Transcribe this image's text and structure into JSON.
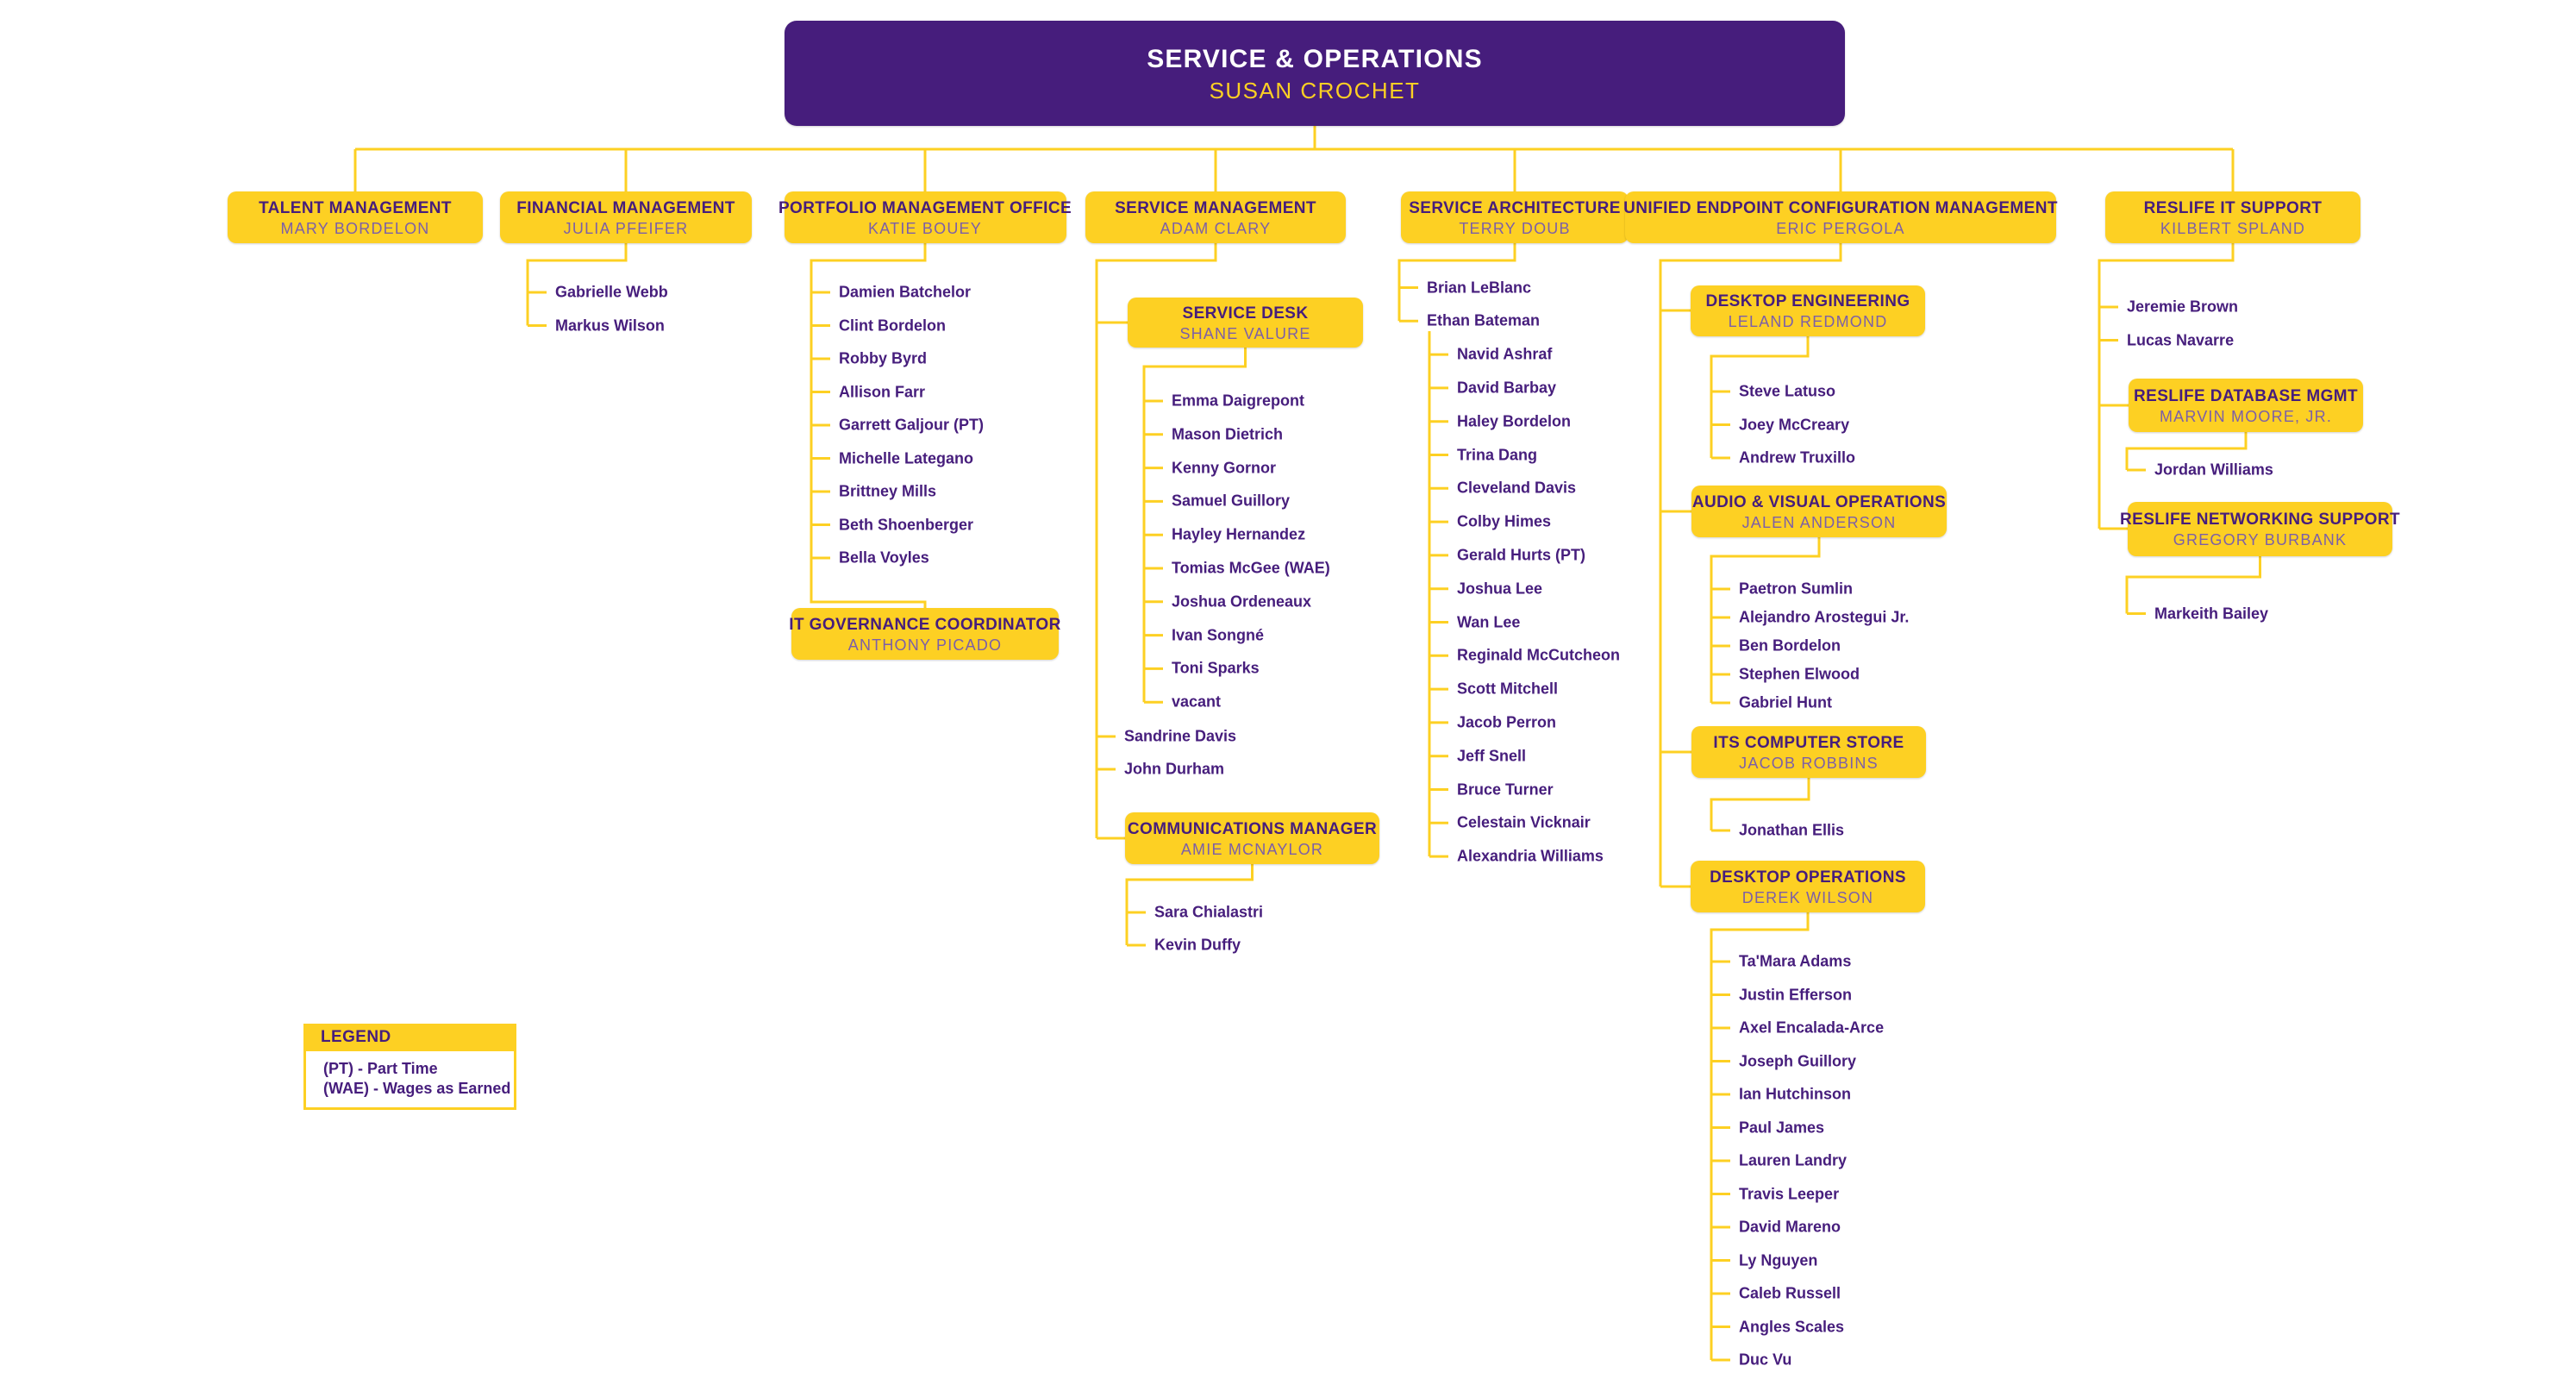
{
  "colors": {
    "purple": "#461D7C",
    "gold": "#FDD023",
    "manager_name": "#7C5FA8",
    "background": "#FFFFFF"
  },
  "root": {
    "title": "SERVICE & OPERATIONS",
    "name": "SUSAN CROCHET"
  },
  "departments": [
    {
      "key": "talent",
      "title": "TALENT MANAGEMENT",
      "name": "MARY BORDELON",
      "staff": [],
      "subunits": []
    },
    {
      "key": "financial",
      "title": "FINANCIAL MANAGEMENT",
      "name": "JULIA PFEIFER",
      "staff": [
        "Gabrielle Webb",
        "Markus Wilson"
      ],
      "subunits": []
    },
    {
      "key": "portfolio",
      "title": "PORTFOLIO MANAGEMENT OFFICE",
      "name": "KATIE BOUEY",
      "staff": [
        "Damien Batchelor",
        "Clint Bordelon",
        "Robby Byrd",
        "Allison Farr",
        "Garrett Galjour (PT)",
        "Michelle Lategano",
        "Brittney Mills",
        "Beth Shoenberger",
        "Bella Voyles"
      ],
      "subunits": [
        {
          "key": "itgov",
          "title": "IT GOVERNANCE COORDINATOR",
          "name": "ANTHONY PICADO",
          "staff": []
        }
      ]
    },
    {
      "key": "servicemgmt",
      "title": "SERVICE MANAGEMENT",
      "name": "ADAM CLARY",
      "staff": [
        "Sandrine Davis",
        "John Durham"
      ],
      "subunits": [
        {
          "key": "servicedesk",
          "title": "SERVICE DESK",
          "name": "SHANE VALURE",
          "staff": [
            "Emma Daigrepont",
            "Mason Dietrich",
            "Kenny Gornor",
            "Samuel Guillory",
            "Hayley Hernandez",
            "Tomias McGee (WAE)",
            "Joshua Ordeneaux",
            "Ivan Songné",
            "Toni Sparks",
            "vacant"
          ]
        },
        {
          "key": "comms",
          "title": "COMMUNICATIONS MANAGER",
          "name": "AMIE MCNAYLOR",
          "staff": [
            "Sara Chialastri",
            "Kevin Duffy"
          ]
        }
      ]
    },
    {
      "key": "servicearch",
      "title": "SERVICE ARCHITECTURE",
      "name": "TERRY DOUB",
      "staff": [
        "Brian LeBlanc",
        {
          "name": "Ethan Bateman",
          "reports": [
            "Navid Ashraf",
            "David Barbay",
            "Haley Bordelon",
            "Trina Dang",
            "Cleveland Davis",
            "Colby Himes",
            "Gerald Hurts (PT)",
            "Joshua Lee",
            "Wan Lee",
            "Reginald McCutcheon",
            "Scott Mitchell",
            "Jacob Perron",
            "Jeff Snell",
            "Bruce Turner",
            "Celestain Vicknair",
            "Alexandria Williams"
          ]
        }
      ],
      "subunits": []
    },
    {
      "key": "uecm",
      "title": "UNIFIED ENDPOINT CONFIGURATION MANAGEMENT",
      "name": "ERIC PERGOLA",
      "staff": [],
      "subunits": [
        {
          "key": "desktopeng",
          "title": "DESKTOP ENGINEERING",
          "name": "LELAND REDMOND",
          "staff": [
            "Steve Latuso",
            "Joey McCreary",
            "Andrew Truxillo"
          ]
        },
        {
          "key": "avops",
          "title": "AUDIO & VISUAL OPERATIONS",
          "name": "JALEN ANDERSON",
          "staff": [
            "Paetron Sumlin",
            "Alejandro Arostegui Jr.",
            "Ben Bordelon",
            "Stephen Elwood",
            "Gabriel Hunt"
          ]
        },
        {
          "key": "computerstore",
          "title": "ITS COMPUTER STORE",
          "name": "JACOB ROBBINS",
          "staff": [
            "Jonathan Ellis"
          ]
        },
        {
          "key": "desktopops",
          "title": "DESKTOP OPERATIONS",
          "name": "DEREK WILSON",
          "staff": [
            "Ta'Mara Adams",
            "Justin Efferson",
            "Axel Encalada-Arce",
            "Joseph Guillory",
            "Ian Hutchinson",
            "Paul James",
            "Lauren Landry",
            "Travis Leeper",
            "David Mareno",
            "Ly Nguyen",
            "Caleb Russell",
            "Angles Scales",
            "Duc Vu"
          ]
        }
      ]
    },
    {
      "key": "reslife",
      "title": "RESLIFE IT SUPPORT",
      "name": "KILBERT SPLAND",
      "staff": [
        "Jeremie Brown",
        "Lucas Navarre"
      ],
      "subunits": [
        {
          "key": "reslifedb",
          "title": "RESLIFE DATABASE MGMT",
          "name": "MARVIN MOORE, JR.",
          "staff": [
            "Jordan Williams"
          ]
        },
        {
          "key": "reslifenet",
          "title": "RESLIFE NETWORKING SUPPORT",
          "name": "GREGORY BURBANK",
          "staff": [
            "Markeith Bailey"
          ]
        }
      ]
    }
  ],
  "legend": {
    "title": "LEGEND",
    "entries": [
      "(PT) - Part Time",
      "(WAE) - Wages as Earned"
    ]
  }
}
